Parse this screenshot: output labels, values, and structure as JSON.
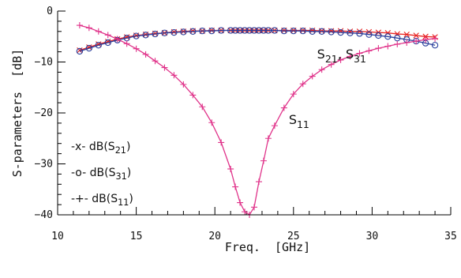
{
  "chart_data": {
    "type": "line",
    "xlabel": "Freq.  [GHz]",
    "ylabel": "S-parameters  [dB]",
    "xlim": [
      10,
      35
    ],
    "ylim": [
      -40,
      0
    ],
    "xticks": [
      "10",
      "15",
      "20",
      "25",
      "30",
      "35"
    ],
    "yticks": [
      "0",
      "−10",
      "−20",
      "−30",
      "−40"
    ],
    "grid": false,
    "x": [
      11.4,
      12,
      12.6,
      13.2,
      13.8,
      14.4,
      15,
      15.6,
      16.2,
      16.8,
      17.4,
      18,
      18.6,
      19.2,
      19.8,
      20.4,
      21,
      21.3,
      21.6,
      21.9,
      22.2,
      22.5,
      22.8,
      23.1,
      23.4,
      23.8,
      24.4,
      25,
      25.6,
      26.2,
      26.8,
      27.4,
      28,
      28.6,
      29.2,
      29.8,
      30.4,
      31,
      31.6,
      32.2,
      32.8,
      33.4,
      34
    ],
    "series": [
      {
        "name": "dB(S21)",
        "marker": "x",
        "color": "#e8201e",
        "values": [
          -7.7,
          -7.1,
          -6.5,
          -6.0,
          -5.5,
          -5.1,
          -4.8,
          -4.6,
          -4.4,
          -4.3,
          -4.1,
          -4.0,
          -3.9,
          -3.9,
          -3.8,
          -3.8,
          -3.8,
          -3.8,
          -3.8,
          -3.8,
          -3.8,
          -3.8,
          -3.8,
          -3.8,
          -3.8,
          -3.8,
          -3.8,
          -3.8,
          -3.8,
          -3.8,
          -3.9,
          -3.9,
          -3.9,
          -4.0,
          -4.0,
          -4.1,
          -4.2,
          -4.3,
          -4.5,
          -4.6,
          -4.8,
          -5.0,
          -5.1
        ]
      },
      {
        "name": "dB(S31)",
        "marker": "o",
        "color": "#2a3f9c",
        "values": [
          -7.9,
          -7.3,
          -6.7,
          -6.2,
          -5.7,
          -5.3,
          -4.9,
          -4.7,
          -4.5,
          -4.3,
          -4.2,
          -4.1,
          -4.0,
          -3.9,
          -3.9,
          -3.8,
          -3.8,
          -3.8,
          -3.8,
          -3.8,
          -3.8,
          -3.8,
          -3.8,
          -3.8,
          -3.8,
          -3.8,
          -3.9,
          -3.9,
          -3.9,
          -4.0,
          -4.0,
          -4.1,
          -4.2,
          -4.3,
          -4.4,
          -4.6,
          -4.8,
          -5.0,
          -5.3,
          -5.6,
          -5.9,
          -6.3,
          -6.7
        ]
      },
      {
        "name": "dB(S11)",
        "marker": "+",
        "color": "#e0338a",
        "values": [
          -2.8,
          -3.3,
          -4.0,
          -4.7,
          -5.5,
          -6.4,
          -7.4,
          -8.5,
          -9.8,
          -11.1,
          -12.6,
          -14.4,
          -16.5,
          -18.8,
          -21.9,
          -25.8,
          -31.0,
          -34.5,
          -37.6,
          -39.4,
          -40.0,
          -38.5,
          -33.5,
          -29.4,
          -25.0,
          -22.5,
          -19.0,
          -16.3,
          -14.3,
          -12.8,
          -11.5,
          -10.5,
          -9.6,
          -8.9,
          -8.3,
          -7.8,
          -7.3,
          -6.9,
          -6.5,
          -6.2,
          -5.9,
          -5.6,
          -5.4
        ]
      }
    ],
    "annotations": {
      "s2131": {
        "text": "S21, S31",
        "x": 26.5,
        "y": -9.3
      },
      "s11": {
        "text": "S11",
        "x": 24.7,
        "y": -22.2
      }
    },
    "legend": {
      "placement": "bottom-left",
      "entries": [
        {
          "prefix": "-x- dB(S",
          "sub": "21",
          "suffix": ")"
        },
        {
          "prefix": "-o- dB(S",
          "sub": "31",
          "suffix": ")"
        },
        {
          "prefix": "-+- dB(S",
          "sub": "11",
          "suffix": ")"
        }
      ]
    }
  }
}
